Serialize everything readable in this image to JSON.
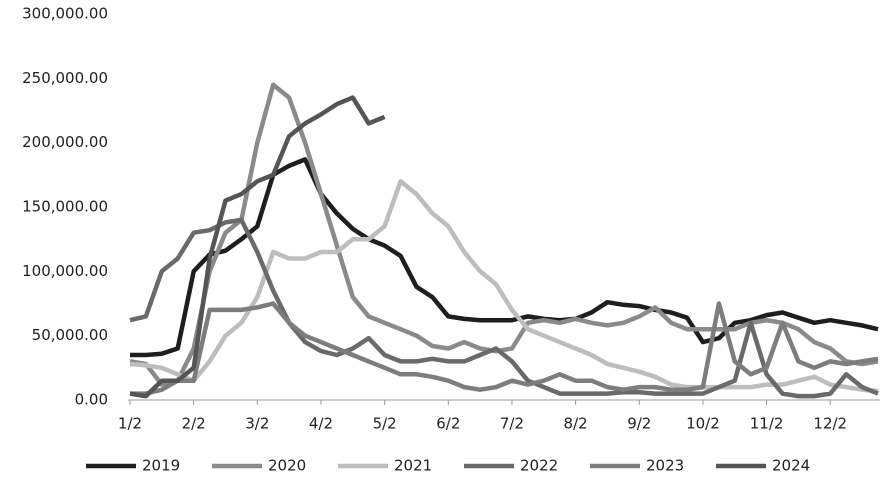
{
  "chart_data": {
    "type": "line",
    "categories": [
      "1/2",
      null,
      null,
      null,
      "2/2",
      null,
      null,
      null,
      "3/2",
      null,
      null,
      null,
      "4/2",
      null,
      null,
      null,
      "5/2",
      null,
      null,
      null,
      "6/2",
      null,
      null,
      null,
      "7/2",
      null,
      null,
      null,
      "8/2",
      null,
      null,
      null,
      "9/2",
      null,
      null,
      null,
      "10/2",
      null,
      null,
      null,
      "11/2",
      null,
      null,
      null,
      "12/2",
      null,
      null,
      null
    ],
    "ylim": [
      0,
      300000
    ],
    "yticks": [
      {
        "value": 0,
        "label": "0.00"
      },
      {
        "value": 50000,
        "label": "50,000.00"
      },
      {
        "value": 100000,
        "label": "100,000.00"
      },
      {
        "value": 150000,
        "label": "150,000.00"
      },
      {
        "value": 200000,
        "label": "200,000.00"
      },
      {
        "value": 250000,
        "label": "250,000.00"
      },
      {
        "value": 300000,
        "label": "300,000.00"
      }
    ],
    "grid": false,
    "legend": "bottom",
    "series": [
      {
        "name": "2019",
        "color": "#1e1e1e",
        "values": [
          35000,
          35000,
          36000,
          40000,
          100000,
          113000,
          116000,
          125000,
          135000,
          175000,
          182000,
          187000,
          160000,
          145000,
          133000,
          125000,
          120000,
          112000,
          88000,
          80000,
          65000,
          63000,
          62000,
          62000,
          62000,
          65000,
          63000,
          62000,
          63000,
          68000,
          76000,
          74000,
          73000,
          70000,
          68000,
          64000,
          45000,
          48000,
          60000,
          62000,
          66000,
          68000,
          64000,
          60000,
          62000,
          60000,
          58000,
          55000
        ]
      },
      {
        "name": "2020",
        "color": "#8a8a8a",
        "values": [
          30000,
          28000,
          12000,
          15000,
          40000,
          100000,
          130000,
          140000,
          200000,
          245000,
          235000,
          200000,
          160000,
          120000,
          80000,
          65000,
          60000,
          55000,
          50000,
          42000,
          40000,
          45000,
          40000,
          38000,
          40000,
          60000,
          62000,
          60000,
          63000,
          60000,
          58000,
          60000,
          65000,
          72000,
          60000,
          55000,
          55000,
          55000,
          55000,
          60000,
          62000,
          60000,
          55000,
          45000,
          40000,
          30000,
          28000,
          30000
        ]
      },
      {
        "name": "2021",
        "color": "#bdbdbd",
        "values": [
          28000,
          27000,
          25000,
          20000,
          15000,
          30000,
          50000,
          60000,
          80000,
          115000,
          110000,
          110000,
          115000,
          115000,
          125000,
          125000,
          135000,
          170000,
          160000,
          145000,
          135000,
          115000,
          100000,
          90000,
          70000,
          55000,
          50000,
          45000,
          40000,
          35000,
          28000,
          25000,
          22000,
          18000,
          12000,
          10000,
          10000,
          10000,
          10000,
          10000,
          12000,
          12000,
          15000,
          18000,
          12000,
          10000,
          8000,
          7000
        ]
      },
      {
        "name": "2022",
        "color": "#6a6a6a",
        "values": [
          62000,
          65000,
          100000,
          110000,
          130000,
          132000,
          138000,
          140000,
          115000,
          85000,
          60000,
          45000,
          38000,
          35000,
          40000,
          48000,
          35000,
          30000,
          30000,
          32000,
          30000,
          30000,
          35000,
          40000,
          30000,
          15000,
          10000,
          5000,
          5000,
          5000,
          5000,
          6000,
          6000,
          5000,
          5000,
          5000,
          5000,
          10000,
          15000,
          60000,
          20000,
          5000,
          3000,
          3000,
          5000,
          20000,
          10000,
          5000
        ]
      },
      {
        "name": "2023",
        "color": "#7d7d7d",
        "values": [
          5000,
          5000,
          8000,
          15000,
          15000,
          70000,
          70000,
          70000,
          72000,
          75000,
          60000,
          50000,
          45000,
          40000,
          35000,
          30000,
          25000,
          20000,
          20000,
          18000,
          15000,
          10000,
          8000,
          10000,
          15000,
          12000,
          15000,
          20000,
          15000,
          15000,
          10000,
          8000,
          10000,
          10000,
          8000,
          8000,
          10000,
          75000,
          30000,
          20000,
          25000,
          60000,
          30000,
          25000,
          30000,
          28000,
          30000,
          32000
        ]
      },
      {
        "name": "2024",
        "color": "#555555",
        "values": [
          5000,
          3000,
          15000,
          15000,
          25000,
          110000,
          155000,
          160000,
          170000,
          175000,
          205000,
          215000,
          222000,
          230000,
          235000,
          215000,
          220000,
          null,
          null,
          null,
          null,
          null,
          null,
          null,
          null,
          null,
          null,
          null,
          null,
          null,
          null,
          null,
          null,
          null,
          null,
          null,
          null,
          null,
          null,
          null,
          null,
          null,
          null,
          null,
          null,
          null,
          null,
          null
        ]
      }
    ]
  }
}
